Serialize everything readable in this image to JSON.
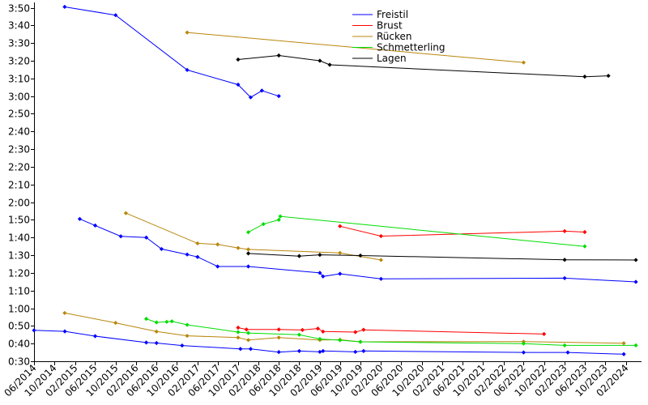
{
  "chart_data": {
    "type": "line",
    "title": "",
    "xlabel": "",
    "ylabel": "",
    "y_unit": "m:ss",
    "xlim": [
      "2014-06-01",
      "2024-04-01"
    ],
    "ylim": [
      "0:30",
      "3:53"
    ],
    "grid": false,
    "legend_position": "top-center",
    "x_tick_labels": [
      "06/2014",
      "10/2014",
      "02/2015",
      "06/2015",
      "10/2015",
      "02/2016",
      "06/2016",
      "10/2016",
      "02/2017",
      "06/2017",
      "10/2017",
      "02/2018",
      "06/2018",
      "10/2018",
      "02/2019",
      "06/2019",
      "10/2019",
      "02/2020",
      "06/2020",
      "10/2020",
      "02/2021",
      "06/2021",
      "10/2021",
      "02/2022",
      "06/2022",
      "10/2022",
      "02/2023",
      "06/2023",
      "10/2023",
      "02/2024"
    ],
    "x_tick_dates": [
      "2014-06-01",
      "2014-10-01",
      "2015-02-01",
      "2015-06-01",
      "2015-10-01",
      "2016-02-01",
      "2016-06-01",
      "2016-10-01",
      "2017-02-01",
      "2017-06-01",
      "2017-10-01",
      "2018-02-01",
      "2018-06-01",
      "2018-10-01",
      "2019-02-01",
      "2019-06-01",
      "2019-10-01",
      "2020-02-01",
      "2020-06-01",
      "2020-10-01",
      "2021-02-01",
      "2021-06-01",
      "2021-10-01",
      "2022-02-01",
      "2022-06-01",
      "2022-10-01",
      "2023-02-01",
      "2023-06-01",
      "2023-10-01",
      "2024-02-01"
    ],
    "y_tick_labels": [
      "0:30",
      "0:40",
      "0:50",
      "1:00",
      "1:10",
      "1:20",
      "1:30",
      "1:40",
      "1:50",
      "2:00",
      "2:10",
      "2:20",
      "2:30",
      "2:40",
      "2:50",
      "3:00",
      "3:10",
      "3:20",
      "3:30",
      "3:40",
      "3:50"
    ],
    "legend": [
      "Freistil",
      "Brust",
      "Rücken",
      "Schmetterling",
      "Lagen"
    ],
    "series": [
      {
        "name": "Freistil",
        "color": "#0000ff",
        "points": [
          [
            "2014-06-01",
            "0:47.5"
          ],
          [
            "2014-12-02",
            "0:46.9"
          ],
          [
            "2015-06-01",
            "0:44.2"
          ],
          [
            "2016-04-01",
            "0:40.6"
          ],
          [
            "2016-06-01",
            "0:40.3"
          ],
          [
            "2016-11-01",
            "0:38.9"
          ],
          [
            "2017-10-15",
            "0:37.0"
          ],
          [
            "2017-12-15",
            "0:37.0"
          ],
          [
            "2018-06-01",
            "0:35.2"
          ],
          [
            "2018-10-01",
            "0:35.8"
          ],
          [
            "2019-02-01",
            "0:35.3"
          ],
          [
            "2019-02-20",
            "0:35.8"
          ],
          [
            "2019-09-01",
            "0:35.3"
          ],
          [
            "2019-10-20",
            "0:35.8"
          ],
          [
            "2022-06-01",
            "0:35.0"
          ],
          [
            "2023-02-20",
            "0:35.0"
          ],
          [
            "2024-01-20",
            "0:34.0"
          ]
        ]
      },
      {
        "name": "Freistil",
        "color": "#0000ff",
        "points": [
          [
            "2015-03-01",
            "1:50.5"
          ],
          [
            "2015-06-01",
            "1:46.8"
          ],
          [
            "2015-11-01",
            "1:40.7"
          ],
          [
            "2016-04-01",
            "1:40.0"
          ],
          [
            "2016-07-01",
            "1:33.5"
          ],
          [
            "2016-12-01",
            "1:30.4"
          ],
          [
            "2017-02-01",
            "1:29.0"
          ],
          [
            "2017-06-01",
            "1:23.6"
          ],
          [
            "2017-12-01",
            "1:23.6"
          ],
          [
            "2019-02-01",
            "1:20.0"
          ],
          [
            "2019-02-20",
            "1:18.0"
          ],
          [
            "2019-06-01",
            "1:19.5"
          ],
          [
            "2020-02-01",
            "1:16.6"
          ],
          [
            "2023-02-01",
            "1:17.0"
          ],
          [
            "2024-04-01",
            "1:14.9"
          ]
        ]
      },
      {
        "name": "Freistil",
        "color": "#0000ff",
        "points": [
          [
            "2014-12-01",
            "3:50.5"
          ],
          [
            "2015-10-01",
            "3:45.8"
          ],
          [
            "2016-12-01",
            "3:14.8"
          ],
          [
            "2017-10-01",
            "3:06.5"
          ],
          [
            "2017-12-15",
            "2:59.3"
          ],
          [
            "2018-02-20",
            "3:03.1"
          ],
          [
            "2018-06-01",
            "3:00.0"
          ]
        ]
      },
      {
        "name": "Brust",
        "color": "#ff0000",
        "points": [
          [
            "2017-10-01",
            "0:49.0"
          ],
          [
            "2017-11-20",
            "0:48.0"
          ],
          [
            "2018-06-01",
            "0:48.0"
          ],
          [
            "2018-10-20",
            "0:47.7"
          ],
          [
            "2019-01-20",
            "0:48.5"
          ],
          [
            "2019-02-20",
            "0:46.8"
          ],
          [
            "2019-09-01",
            "0:46.5"
          ],
          [
            "2019-10-20",
            "0:47.8"
          ],
          [
            "2022-10-01",
            "0:45.4"
          ]
        ]
      },
      {
        "name": "Brust",
        "color": "#ff0000",
        "points": [
          [
            "2019-06-01",
            "1:46.4"
          ],
          [
            "2020-02-01",
            "1:40.8"
          ],
          [
            "2023-02-01",
            "1:43.6"
          ],
          [
            "2023-06-01",
            "1:43.1"
          ]
        ]
      },
      {
        "name": "Rücken",
        "color": "#b8860b",
        "points": [
          [
            "2014-12-01",
            "0:57.3"
          ],
          [
            "2015-10-01",
            "0:51.7"
          ],
          [
            "2016-06-01",
            "0:46.8"
          ],
          [
            "2016-12-01",
            "0:44.4"
          ],
          [
            "2017-10-01",
            "0:43.4"
          ],
          [
            "2017-12-01",
            "0:42.0"
          ],
          [
            "2018-06-01",
            "0:43.4"
          ],
          [
            "2019-02-01",
            "0:42.0"
          ],
          [
            "2019-06-01",
            "0:42.2"
          ],
          [
            "2019-10-01",
            "0:41.0"
          ],
          [
            "2022-06-01",
            "0:41.1"
          ],
          [
            "2024-01-20",
            "0:40.2"
          ]
        ]
      },
      {
        "name": "Rücken",
        "color": "#b8860b",
        "points": [
          [
            "2015-12-01",
            "1:53.8"
          ],
          [
            "2017-02-01",
            "1:36.7"
          ],
          [
            "2017-06-01",
            "1:36.1"
          ],
          [
            "2017-10-01",
            "1:34.1"
          ],
          [
            "2017-12-01",
            "1:33.3"
          ],
          [
            "2019-06-01",
            "1:31.3"
          ],
          [
            "2020-02-01",
            "1:27.3"
          ]
        ]
      },
      {
        "name": "Rücken",
        "color": "#b8860b",
        "points": [
          [
            "2016-12-01",
            "3:36.0"
          ],
          [
            "2022-06-01",
            "3:19.0"
          ]
        ]
      },
      {
        "name": "Schmetterling",
        "color": "#00dd00",
        "points": [
          [
            "2016-04-01",
            "0:54.0"
          ],
          [
            "2016-06-01",
            "0:52.0"
          ],
          [
            "2016-08-01",
            "0:52.3"
          ],
          [
            "2016-09-01",
            "0:52.6"
          ],
          [
            "2016-12-01",
            "0:50.6"
          ],
          [
            "2017-10-01",
            "0:46.5"
          ],
          [
            "2017-12-01",
            "0:46.0"
          ],
          [
            "2018-10-01",
            "0:45.0"
          ],
          [
            "2019-02-01",
            "0:42.6"
          ],
          [
            "2019-06-01",
            "0:41.9"
          ],
          [
            "2019-10-01",
            "0:41.0"
          ],
          [
            "2022-06-01",
            "0:40.0"
          ],
          [
            "2023-02-01",
            "0:39.0"
          ],
          [
            "2024-04-01",
            "0:39.0"
          ]
        ]
      },
      {
        "name": "Schmetterling",
        "color": "#00dd00",
        "points": [
          [
            "2017-12-01",
            "1:43.0"
          ],
          [
            "2018-03-01",
            "1:47.6"
          ],
          [
            "2018-06-01",
            "1:50.0"
          ],
          [
            "2018-06-10",
            "1:52.0"
          ],
          [
            "2023-06-01",
            "1:35.0"
          ]
        ]
      },
      {
        "name": "Lagen",
        "color": "#000000",
        "points": [
          [
            "2017-12-01",
            "1:31.0"
          ],
          [
            "2018-10-01",
            "1:29.5"
          ],
          [
            "2019-02-01",
            "1:30.2"
          ],
          [
            "2019-10-01",
            "1:29.8"
          ],
          [
            "2023-02-01",
            "1:27.4"
          ],
          [
            "2024-04-01",
            "1:27.3"
          ]
        ]
      },
      {
        "name": "Lagen",
        "color": "#000000",
        "points": [
          [
            "2017-10-01",
            "3:20.7"
          ],
          [
            "2018-06-01",
            "3:23.0"
          ],
          [
            "2019-02-01",
            "3:20.0"
          ],
          [
            "2019-04-01",
            "3:17.7"
          ],
          [
            "2023-06-01",
            "3:11.0"
          ],
          [
            "2023-10-20",
            "3:11.5"
          ]
        ]
      }
    ]
  }
}
